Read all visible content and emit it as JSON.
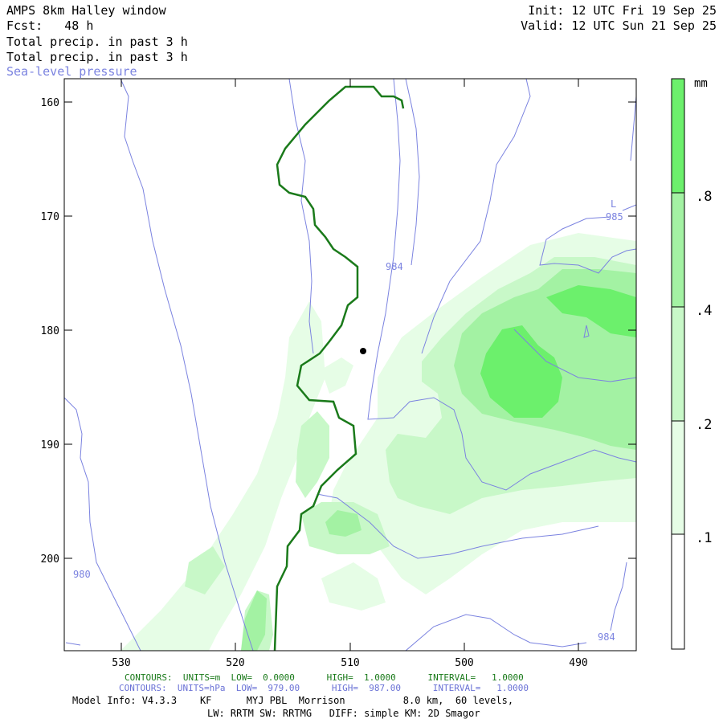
{
  "header": {
    "title": "AMPS 8km Halley window",
    "fcst": "Fcst:   48 h",
    "init": "Init: 12 UTC Fri 19 Sep 25",
    "valid": "Valid: 12 UTC Sun 21 Sep 25",
    "line1": "Total precip. in past 3 h",
    "line2": "Total precip. in past 3 h",
    "line3": "Sea-level pressure"
  },
  "map": {
    "y_ticks": [
      "160",
      "170",
      "180",
      "190",
      "200"
    ],
    "x_ticks": [
      "530",
      "520",
      "510",
      "500",
      "490"
    ],
    "contour_labels": [
      "985",
      "984",
      "980",
      "984"
    ],
    "low_marker": "L"
  },
  "colorbar": {
    "unit": "mm",
    "labels": [
      ".8",
      ".4",
      ".2",
      ".1"
    ],
    "colors": [
      "#ffffff",
      "#e6fde6",
      "#c8f8c8",
      "#a3f2a3",
      "#6cf06c"
    ]
  },
  "footer": {
    "green_line": "CONTOURS:  UNITS=m  LOW=  0.0000      HIGH=  1.0000      INTERVAL=   1.0000",
    "blue_line": "CONTOURS:  UNITS=hPa  LOW=  979.00      HIGH=  987.00      INTERVAL=   1.0000",
    "model_info": "Model Info: V4.3.3    KF      MYJ PBL  Morrison          8.0 km,  60 levels,",
    "physics": "LW: RRTM SW: RRTMG   DIFF: simple KM: 2D Smagor"
  },
  "colors": {
    "slp_contour": "#7b83e0",
    "coastline": "#1a7a1a"
  }
}
